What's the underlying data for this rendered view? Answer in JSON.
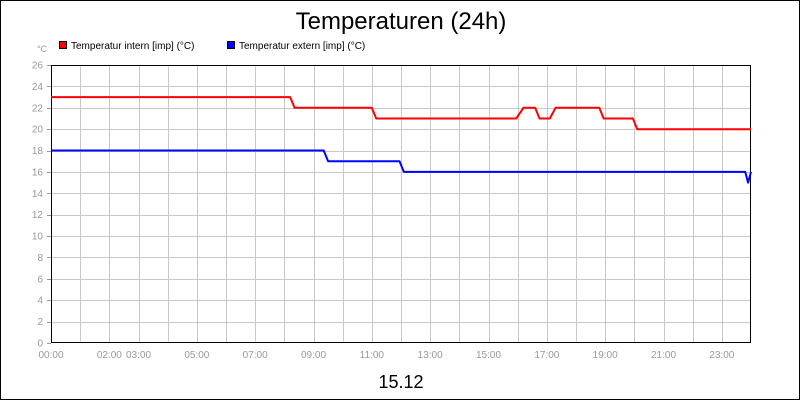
{
  "chart_data": {
    "type": "line",
    "title": "Temperaturen (24h)",
    "xlabel": "15.12",
    "ylabel": "°C",
    "ylim": [
      0,
      26
    ],
    "xlim": [
      0,
      24
    ],
    "y_ticks": [
      0,
      2,
      4,
      6,
      8,
      10,
      12,
      14,
      16,
      18,
      20,
      22,
      24,
      26
    ],
    "x_ticks": [
      {
        "x": 0,
        "label": "00:00"
      },
      {
        "x": 2,
        "label": "02:00"
      },
      {
        "x": 3,
        "label": "03:00"
      },
      {
        "x": 5,
        "label": "05:00"
      },
      {
        "x": 7,
        "label": "07:00"
      },
      {
        "x": 9,
        "label": "09:00"
      },
      {
        "x": 11,
        "label": "11:00"
      },
      {
        "x": 13,
        "label": "13:00"
      },
      {
        "x": 15,
        "label": "15:00"
      },
      {
        "x": 17,
        "label": "17:00"
      },
      {
        "x": 19,
        "label": "19:00"
      },
      {
        "x": 21,
        "label": "21:00"
      },
      {
        "x": 23,
        "label": "23:00"
      }
    ],
    "grid": true,
    "legend_position": "top-left",
    "series": [
      {
        "name": "Temperatur intern [imp] (°C)",
        "color": "#ff0000",
        "points": [
          [
            0.0,
            23
          ],
          [
            8.2,
            23
          ],
          [
            8.35,
            22
          ],
          [
            11.0,
            22
          ],
          [
            11.15,
            21
          ],
          [
            15.95,
            21
          ],
          [
            16.2,
            22
          ],
          [
            16.6,
            22
          ],
          [
            16.75,
            21
          ],
          [
            17.1,
            21
          ],
          [
            17.3,
            22
          ],
          [
            18.8,
            22
          ],
          [
            18.95,
            21
          ],
          [
            19.95,
            21
          ],
          [
            20.1,
            20
          ],
          [
            24.0,
            20
          ]
        ]
      },
      {
        "name": "Temperatur extern [imp] (°C)",
        "color": "#0000ff",
        "points": [
          [
            0.0,
            18
          ],
          [
            9.35,
            18
          ],
          [
            9.5,
            17
          ],
          [
            11.95,
            17
          ],
          [
            12.1,
            16
          ],
          [
            23.8,
            16
          ],
          [
            23.9,
            15
          ],
          [
            24.0,
            16
          ]
        ]
      }
    ]
  }
}
